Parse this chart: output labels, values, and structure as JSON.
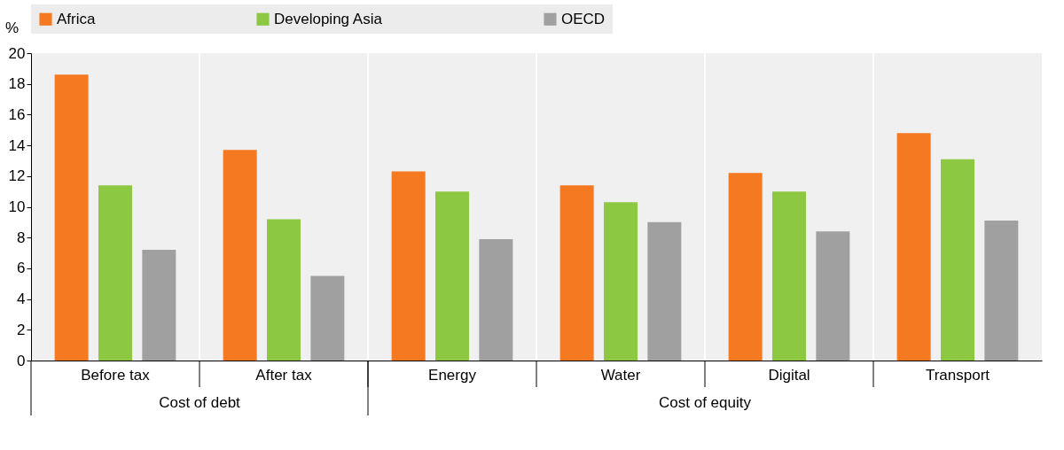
{
  "chart_data": {
    "type": "bar",
    "ylabel": "%",
    "categories": [
      "Before tax",
      "After tax",
      "Energy",
      "Water",
      "Digital",
      "Transport"
    ],
    "series": [
      {
        "name": "Africa",
        "color": "#f47920",
        "values": [
          18.6,
          13.7,
          12.3,
          11.4,
          12.2,
          14.8
        ]
      },
      {
        "name": "Developing Asia",
        "color": "#8cc841",
        "values": [
          11.4,
          9.2,
          11.0,
          10.3,
          11.0,
          13.1
        ]
      },
      {
        "name": "OECD",
        "color": "#a0a0a0",
        "values": [
          7.2,
          5.5,
          7.9,
          9.0,
          8.4,
          9.1
        ]
      }
    ],
    "ylim": [
      0,
      20
    ],
    "yticks": [
      0,
      2,
      4,
      6,
      8,
      10,
      12,
      14,
      16,
      18,
      20
    ],
    "annotations": [
      "Cost of debt",
      "Cost of equity"
    ],
    "grid": "x",
    "legend": "top"
  }
}
